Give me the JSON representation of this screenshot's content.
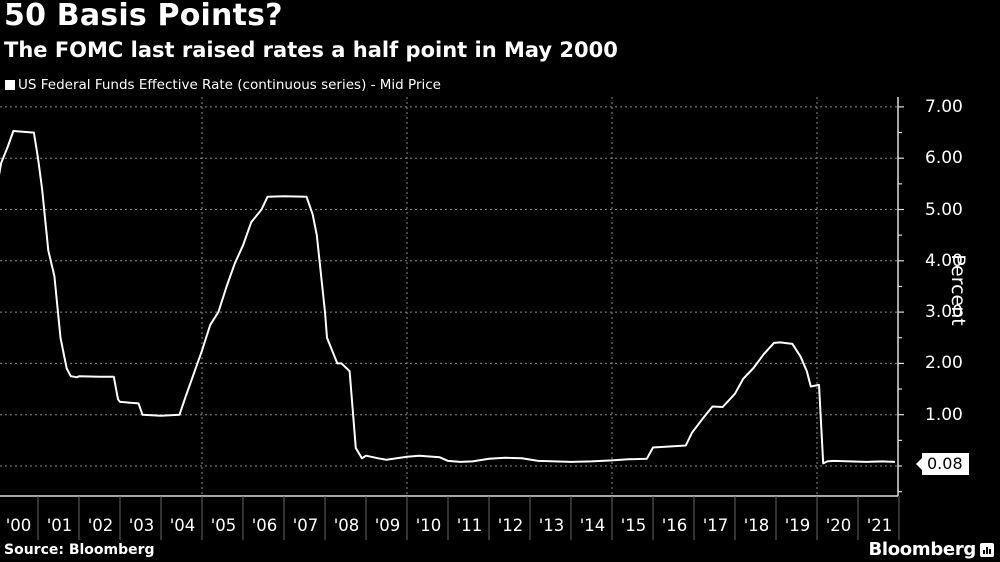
{
  "header": {
    "title": "50 Basis Points?",
    "subtitle": "The FOMC last raised rates a half point in  May 2000"
  },
  "legend": {
    "items": [
      {
        "label": "US Federal Funds Effective Rate (continuous series) - Mid Price",
        "color": "#ffffff"
      }
    ]
  },
  "footer": {
    "source": "Source: Bloomberg",
    "brand": "Bloomberg"
  },
  "last_value_badge": "0.08",
  "colors": {
    "background": "#000000",
    "line": "#ffffff",
    "grid": "#777777",
    "text": "#ffffff"
  },
  "chart_data": {
    "type": "line",
    "title": "50 Basis Points?",
    "subtitle": "The FOMC last raised rates a half point in  May 2000",
    "xlabel": "",
    "ylabel": "Percent",
    "ylim": [
      -0.5,
      7.2
    ],
    "yticks": [
      "7.00",
      "6.00",
      "5.00",
      "4.00",
      "3.00",
      "2.00",
      "1.00"
    ],
    "y_tick_values": [
      7,
      6,
      5,
      4,
      3,
      2,
      1
    ],
    "x_tick_labels": [
      "'00",
      "'01",
      "'02",
      "'03",
      "'04",
      "'05",
      "'06",
      "'07",
      "'08",
      "'09",
      "'10",
      "'11",
      "'12",
      "'13",
      "'14",
      "'15",
      "'16",
      "'17",
      "'18",
      "'19",
      "'20",
      "'21"
    ],
    "grid": {
      "horizontal": true,
      "vertical_years": [
        2005,
        2010,
        2015,
        2020
      ]
    },
    "legend_position": "top-left",
    "last_value": 0.08,
    "series": [
      {
        "name": "US Federal Funds Effective Rate (continuous series) - Mid Price",
        "x": [
          2000.0,
          2000.1,
          2000.25,
          2000.4,
          2000.55,
          2000.9,
          2001.0,
          2001.1,
          2001.25,
          2001.4,
          2001.55,
          2001.7,
          2001.8,
          2001.95,
          2002.0,
          2002.5,
          2002.85,
          2002.95,
          2003.0,
          2003.45,
          2003.55,
          2004.0,
          2004.45,
          2004.6,
          2004.8,
          2005.0,
          2005.2,
          2005.4,
          2005.6,
          2005.8,
          2006.0,
          2006.2,
          2006.45,
          2006.6,
          2007.0,
          2007.55,
          2007.7,
          2007.8,
          2008.0,
          2008.05,
          2008.3,
          2008.4,
          2008.6,
          2008.75,
          2008.9,
          2009.0,
          2009.3,
          2009.5,
          2010.0,
          2010.3,
          2010.8,
          2011.0,
          2011.3,
          2011.6,
          2012.0,
          2012.4,
          2012.8,
          2013.2,
          2013.6,
          2014.0,
          2014.5,
          2015.0,
          2015.4,
          2015.85,
          2016.0,
          2016.8,
          2016.95,
          2017.2,
          2017.45,
          2017.7,
          2018.0,
          2018.2,
          2018.45,
          2018.7,
          2018.95,
          2019.1,
          2019.4,
          2019.6,
          2019.75,
          2019.85,
          2020.05,
          2020.15,
          2020.25,
          2020.4,
          2020.8,
          2021.2,
          2021.6,
          2021.9
        ],
        "values": [
          5.45,
          5.9,
          6.2,
          6.53,
          6.52,
          6.5,
          6.0,
          5.4,
          4.2,
          3.7,
          2.5,
          1.9,
          1.75,
          1.73,
          1.75,
          1.74,
          1.74,
          1.3,
          1.25,
          1.22,
          1.0,
          0.98,
          1.0,
          1.35,
          1.8,
          2.25,
          2.75,
          3.0,
          3.5,
          3.95,
          4.3,
          4.75,
          5.0,
          5.25,
          5.26,
          5.25,
          4.9,
          4.5,
          3.0,
          2.5,
          2.0,
          2.0,
          1.85,
          0.35,
          0.15,
          0.2,
          0.15,
          0.12,
          0.18,
          0.2,
          0.17,
          0.1,
          0.08,
          0.09,
          0.14,
          0.16,
          0.15,
          0.1,
          0.09,
          0.08,
          0.09,
          0.11,
          0.13,
          0.14,
          0.36,
          0.4,
          0.65,
          0.91,
          1.16,
          1.15,
          1.41,
          1.7,
          1.91,
          2.18,
          2.4,
          2.41,
          2.38,
          2.13,
          1.85,
          1.55,
          1.58,
          0.05,
          0.09,
          0.1,
          0.09,
          0.08,
          0.09,
          0.08
        ]
      }
    ]
  }
}
